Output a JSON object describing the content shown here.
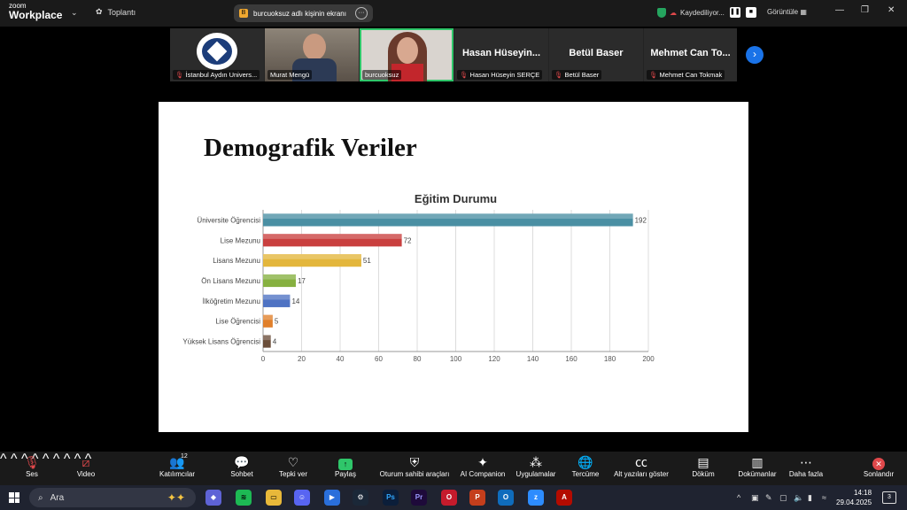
{
  "app": {
    "logo_top": "zoom",
    "logo_bottom": "Workplace",
    "meeting_label": "Toplantı",
    "share_label": "burcuoksuz adlı kişinin ekranı",
    "recording_label": "Kaydediliyor...",
    "view_label": "Görüntüle"
  },
  "participants": [
    {
      "label": "İstanbul Aydın Univers...",
      "muted": true
    },
    {
      "label": "Murat Mengü",
      "muted": false
    },
    {
      "label": "burcuoksuz",
      "muted": false,
      "active": true
    },
    {
      "display": "Hasan Hüseyin...",
      "label": "Hasan Hüseyin SERÇE",
      "muted": true
    },
    {
      "display": "Betül Baser",
      "label": "Betül Baser",
      "muted": true
    },
    {
      "display": "Mehmet Can To...",
      "label": "Mehmet Can Tokmak",
      "muted": true
    }
  ],
  "slide": {
    "title": "Demografik Veriler"
  },
  "chart_data": {
    "type": "bar",
    "orientation": "horizontal",
    "title": "Eğitim Durumu",
    "categories": [
      "Üniversite Öğrencisi",
      "Lise Mezunu",
      "Lisans Mezunu",
      "Ön Lisans Mezunu",
      "İlköğretim Mezunu",
      "Lise Öğrencisi",
      "Yüksek Lisans Öğrencisi"
    ],
    "values": [
      192,
      72,
      51,
      17,
      14,
      5,
      4
    ],
    "colors": [
      "#4a8fa3",
      "#c9403f",
      "#e3b63c",
      "#86b040",
      "#4f73c3",
      "#e07f2a",
      "#6b4e3a"
    ],
    "xlim": [
      0,
      200
    ],
    "xticks": [
      0,
      20,
      40,
      60,
      80,
      100,
      120,
      140,
      160,
      180,
      200
    ],
    "grid": true,
    "data_labels": true
  },
  "toolbar": {
    "audio": "Ses",
    "video": "Video",
    "participants": "Katılımcılar",
    "participants_count": "12",
    "chat": "Sohbet",
    "react": "Tepki ver",
    "share": "Paylaş",
    "host_tools": "Oturum sahibi araçları",
    "ai": "AI Companion",
    "apps": "Uygulamalar",
    "translate": "Tercüme",
    "captions": "Alt yazıları göster",
    "transcript": "Döküm",
    "docs": "Dokümanlar",
    "more": "Daha fazla",
    "end": "Sonlandır"
  },
  "taskbar": {
    "search_placeholder": "Ara",
    "time": "14:18",
    "date": "29.04.2025",
    "notifications": "3"
  },
  "icons": {
    "mic": "mic-muted-icon",
    "video": "video-muted-icon",
    "shield": "shield-icon"
  }
}
